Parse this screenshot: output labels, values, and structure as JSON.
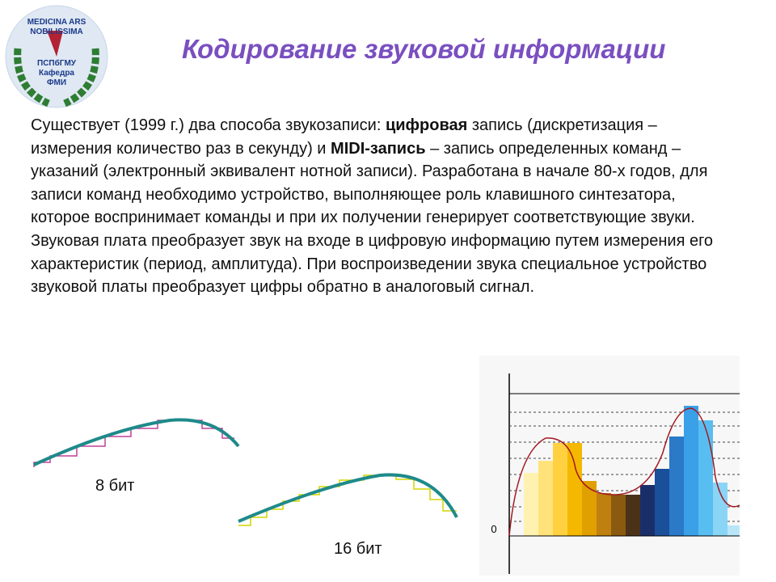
{
  "logo": {
    "motto_1": "MEDICINA ARS",
    "motto_2": "NOBILISSIMA",
    "university": "ПСПбГМУ",
    "department": "Кафедра",
    "unit": "ФМИ"
  },
  "title": "Кодирование звуковой информации",
  "paragraph_1": [
    "Существует (1999 г.) два способа звукозаписи: ",
    "цифровая",
    "  запись (дискретизация – измерения количество раз в секунду) и ",
    "MIDI-запись",
    " – запись определенных команд – указаний (электронный эквивалент нотной записи). Разработана в начале 80-х годов, для записи команд необходимо устройство, выполняющее роль клавишного синтезатора, которое воспринимает команды и при их получении генерирует соответствующие звуки."
  ],
  "paragraph_2": "Звуковая плата преобразует звук на входе в цифровую информацию путем измерения его характеристик (период, амплитуда). При воспроизведении звука специальное устройство звуковой платы преобразует цифры обратно в аналоговый сигнал.",
  "figure_8bit_label": "8 бит",
  "figure_16bit_label": "16 бит",
  "chart_origin_label": "0"
}
